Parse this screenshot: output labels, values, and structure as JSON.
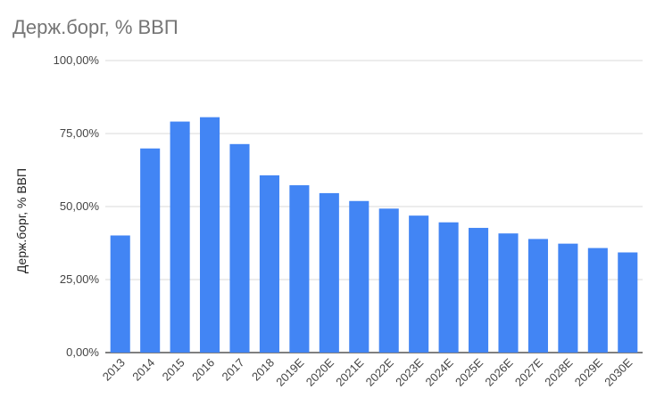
{
  "chart_data": {
    "type": "bar",
    "title": "Держ.борг, % ВВП",
    "xlabel": "",
    "ylabel": "Держ.борг, % ВВП",
    "categories": [
      "2013",
      "2014",
      "2015",
      "2016",
      "2017",
      "2018",
      "2019E",
      "2020E",
      "2021E",
      "2022E",
      "2023E",
      "2024E",
      "2025E",
      "2026E",
      "2027E",
      "2028E",
      "2029E",
      "2030E"
    ],
    "values": [
      40.1,
      69.9,
      79.1,
      80.6,
      71.4,
      60.7,
      57.3,
      54.6,
      51.9,
      49.3,
      46.9,
      44.6,
      42.7,
      40.8,
      38.9,
      37.3,
      35.8,
      34.3
    ],
    "ylim": [
      0,
      100
    ],
    "yticks": [
      "0,00%",
      "25,00%",
      "50,00%",
      "75,00%",
      "100,00%"
    ],
    "grid": true,
    "legend": "none",
    "bar_color": "#4285f4"
  }
}
